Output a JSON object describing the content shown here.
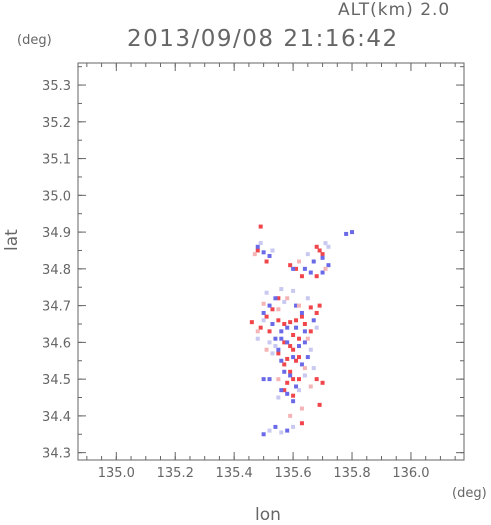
{
  "header": {
    "altitude_label": "ALT(km) 2.0",
    "timestamp": "2013/09/08 21:16:42"
  },
  "chart_data": {
    "type": "scatter",
    "title": "2013/09/08 21:16:42",
    "subtitle": "ALT(km) 2.0",
    "xlabel": "lon",
    "ylabel": "lat",
    "x_unit": "(deg)",
    "y_unit": "(deg)",
    "xlim": [
      134.87,
      136.18
    ],
    "ylim": [
      34.28,
      35.36
    ],
    "x_ticks": [
      135.0,
      135.2,
      135.4,
      135.6,
      135.8,
      136.0
    ],
    "x_tick_labels": [
      "135.0",
      "135.2",
      "135.4",
      "135.6",
      "135.8",
      "136.0"
    ],
    "y_ticks": [
      34.3,
      34.4,
      34.5,
      34.6,
      34.7,
      34.8,
      34.9,
      35.0,
      35.1,
      35.2,
      35.3
    ],
    "y_tick_labels": [
      "34.3",
      "34.4",
      "34.5",
      "34.6",
      "34.7",
      "34.8",
      "34.9",
      "35.0",
      "35.1",
      "35.2",
      "35.3"
    ],
    "grid": false,
    "colors": {
      "positive": "#f0464b",
      "negative": "#6a6ae8",
      "axis": "#666666"
    },
    "series": [
      {
        "color": "#f0464b",
        "points": [
          [
            135.49,
            34.915
          ],
          [
            135.48,
            34.85
          ],
          [
            135.51,
            34.82
          ],
          [
            135.59,
            34.81
          ],
          [
            135.61,
            34.8
          ],
          [
            135.63,
            34.78
          ],
          [
            135.68,
            34.86
          ],
          [
            135.69,
            34.85
          ],
          [
            135.7,
            34.84
          ],
          [
            135.68,
            34.78
          ],
          [
            135.55,
            34.72
          ],
          [
            135.53,
            34.69
          ],
          [
            135.51,
            34.67
          ],
          [
            135.46,
            34.655
          ],
          [
            135.49,
            34.64
          ],
          [
            135.52,
            34.63
          ],
          [
            135.55,
            34.66
          ],
          [
            135.57,
            34.65
          ],
          [
            135.59,
            34.655
          ],
          [
            135.61,
            34.66
          ],
          [
            135.63,
            34.67
          ],
          [
            135.64,
            34.65
          ],
          [
            135.66,
            34.63
          ],
          [
            135.6,
            34.62
          ],
          [
            135.62,
            34.61
          ],
          [
            135.57,
            34.6
          ],
          [
            135.59,
            34.59
          ],
          [
            135.6,
            34.58
          ],
          [
            135.55,
            34.57
          ],
          [
            135.58,
            34.555
          ],
          [
            135.61,
            34.55
          ],
          [
            135.62,
            34.56
          ],
          [
            135.57,
            34.54
          ],
          [
            135.59,
            34.52
          ],
          [
            135.6,
            34.5
          ],
          [
            135.62,
            34.5
          ],
          [
            135.58,
            34.49
          ],
          [
            135.68,
            34.5
          ],
          [
            135.7,
            34.49
          ],
          [
            135.57,
            34.47
          ],
          [
            135.63,
            34.38
          ],
          [
            135.69,
            34.43
          ],
          [
            135.66,
            34.695
          ],
          [
            135.69,
            34.7
          ],
          [
            135.68,
            34.68
          ],
          [
            135.6,
            34.455
          ]
        ]
      },
      {
        "color": "#6a6ae8",
        "points": [
          [
            135.48,
            34.86
          ],
          [
            135.5,
            34.845
          ],
          [
            135.52,
            34.835
          ],
          [
            135.78,
            34.895
          ],
          [
            135.8,
            34.9
          ],
          [
            135.7,
            34.83
          ],
          [
            135.72,
            34.81
          ],
          [
            135.7,
            34.79
          ],
          [
            135.66,
            34.79
          ],
          [
            135.6,
            34.8
          ],
          [
            135.64,
            34.8
          ],
          [
            135.67,
            34.82
          ],
          [
            135.54,
            34.72
          ],
          [
            135.52,
            34.7
          ],
          [
            135.5,
            34.68
          ],
          [
            135.53,
            34.65
          ],
          [
            135.56,
            34.63
          ],
          [
            135.58,
            34.64
          ],
          [
            135.61,
            34.64
          ],
          [
            135.64,
            34.63
          ],
          [
            135.67,
            34.66
          ],
          [
            135.56,
            34.61
          ],
          [
            135.58,
            34.6
          ],
          [
            135.62,
            34.59
          ],
          [
            135.64,
            34.6
          ],
          [
            135.55,
            34.58
          ],
          [
            135.56,
            34.55
          ],
          [
            135.6,
            34.56
          ],
          [
            135.63,
            34.54
          ],
          [
            135.57,
            34.52
          ],
          [
            135.59,
            34.51
          ],
          [
            135.5,
            34.5
          ],
          [
            135.52,
            34.5
          ],
          [
            135.61,
            34.48
          ],
          [
            135.56,
            34.47
          ],
          [
            135.58,
            34.46
          ],
          [
            135.6,
            34.44
          ],
          [
            135.54,
            34.37
          ],
          [
            135.5,
            34.35
          ],
          [
            135.58,
            34.36
          ],
          [
            135.61,
            34.7
          ],
          [
            135.63,
            34.68
          ],
          [
            135.65,
            34.56
          ],
          [
            135.54,
            34.61
          ]
        ]
      },
      {
        "color": "#c8c8f0",
        "points": [
          [
            135.49,
            34.87
          ],
          [
            135.53,
            34.85
          ],
          [
            135.65,
            34.84
          ],
          [
            135.71,
            34.87
          ],
          [
            135.6,
            34.74
          ],
          [
            135.56,
            34.745
          ],
          [
            135.5,
            34.66
          ],
          [
            135.48,
            34.61
          ],
          [
            135.52,
            34.6
          ],
          [
            135.54,
            34.59
          ],
          [
            135.66,
            34.58
          ],
          [
            135.67,
            34.53
          ],
          [
            135.62,
            34.47
          ],
          [
            135.55,
            34.45
          ],
          [
            135.52,
            34.36
          ],
          [
            135.56,
            34.355
          ],
          [
            135.6,
            34.37
          ],
          [
            135.68,
            34.64
          ],
          [
            135.65,
            34.72
          ],
          [
            135.51,
            34.735
          ],
          [
            135.57,
            34.71
          ],
          [
            135.53,
            34.57
          ],
          [
            135.64,
            34.51
          ],
          [
            135.72,
            34.86
          ]
        ]
      },
      {
        "color": "#f4b4b6",
        "points": [
          [
            135.47,
            34.84
          ],
          [
            135.62,
            34.82
          ],
          [
            135.58,
            34.72
          ],
          [
            135.5,
            34.705
          ],
          [
            135.55,
            34.69
          ],
          [
            135.65,
            34.61
          ],
          [
            135.51,
            34.58
          ],
          [
            135.64,
            34.53
          ],
          [
            135.55,
            34.5
          ],
          [
            135.66,
            34.48
          ],
          [
            135.63,
            34.42
          ],
          [
            135.59,
            34.4
          ],
          [
            135.71,
            34.8
          ],
          [
            135.62,
            34.7
          ],
          [
            135.48,
            34.63
          ]
        ]
      }
    ]
  }
}
